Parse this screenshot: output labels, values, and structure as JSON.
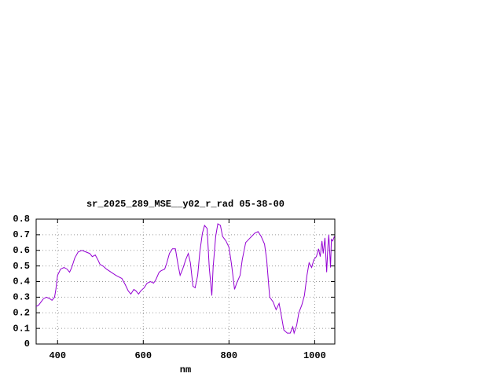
{
  "chart_data": {
    "type": "line",
    "title": "sr_2025_289_MSE__y02_r_rad 05-38-00",
    "x_label": "nm",
    "xlim": [
      350,
      1047
    ],
    "ylim": [
      0,
      0.8
    ],
    "xticks": [
      400,
      600,
      800,
      1000
    ],
    "yticks": [
      0,
      0.1,
      0.2,
      0.3,
      0.4,
      0.5,
      0.6,
      0.7,
      0.8
    ],
    "grid": true,
    "series": [
      {
        "color": "#9400d3",
        "x": [
          350,
          356,
          367,
          374,
          382,
          387,
          393,
          396,
          400,
          407,
          415,
          422,
          428,
          433,
          440,
          448,
          457,
          466,
          475,
          481,
          488,
          494,
          499,
          506,
          514,
          525,
          536,
          543,
          550,
          558,
          565,
          571,
          578,
          583,
          589,
          594,
          602,
          609,
          617,
          624,
          629,
          637,
          642,
          650,
          655,
          661,
          668,
          675,
          681,
          686,
          692,
          699,
          705,
          710,
          716,
          721,
          727,
          732,
          738,
          743,
          749,
          754,
          760,
          763,
          769,
          774,
          780,
          785,
          793,
          800,
          806,
          813,
          818,
          826,
          831,
          839,
          846,
          853,
          860,
          868,
          875,
          883,
          888,
          895,
          903,
          910,
          917,
          923,
          928,
          936,
          943,
          949,
          952,
          958,
          963,
          970,
          976,
          982,
          987,
          993,
          998,
          1004,
          1009,
          1013,
          1017,
          1020,
          1024,
          1028,
          1031,
          1033,
          1037,
          1039,
          1042,
          1046
        ],
        "values": [
          0.24,
          0.25,
          0.29,
          0.3,
          0.29,
          0.28,
          0.3,
          0.35,
          0.44,
          0.48,
          0.49,
          0.48,
          0.46,
          0.49,
          0.55,
          0.59,
          0.6,
          0.59,
          0.58,
          0.56,
          0.57,
          0.54,
          0.51,
          0.5,
          0.48,
          0.46,
          0.44,
          0.43,
          0.42,
          0.38,
          0.34,
          0.32,
          0.35,
          0.34,
          0.32,
          0.34,
          0.36,
          0.39,
          0.4,
          0.39,
          0.41,
          0.46,
          0.47,
          0.48,
          0.52,
          0.58,
          0.61,
          0.61,
          0.51,
          0.44,
          0.48,
          0.54,
          0.58,
          0.52,
          0.37,
          0.36,
          0.44,
          0.59,
          0.71,
          0.76,
          0.74,
          0.49,
          0.31,
          0.49,
          0.69,
          0.77,
          0.76,
          0.69,
          0.66,
          0.62,
          0.51,
          0.35,
          0.39,
          0.44,
          0.54,
          0.65,
          0.67,
          0.69,
          0.71,
          0.72,
          0.69,
          0.64,
          0.54,
          0.3,
          0.27,
          0.22,
          0.26,
          0.17,
          0.09,
          0.07,
          0.07,
          0.11,
          0.07,
          0.12,
          0.2,
          0.25,
          0.31,
          0.44,
          0.52,
          0.49,
          0.54,
          0.56,
          0.61,
          0.56,
          0.66,
          0.58,
          0.68,
          0.46,
          0.63,
          0.7,
          0.49,
          0.67,
          0.66,
          0.69
        ]
      }
    ]
  }
}
